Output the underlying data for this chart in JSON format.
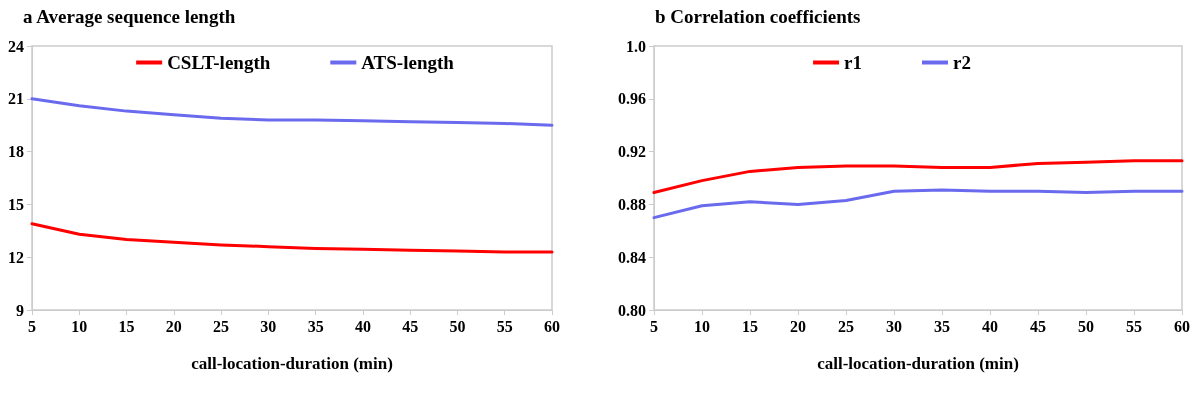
{
  "chart_data": [
    {
      "type": "line",
      "title": "a Average sequence length",
      "xlabel": "call-location-duration (min)",
      "x": [
        5,
        10,
        15,
        20,
        25,
        30,
        35,
        40,
        45,
        50,
        55,
        60
      ],
      "series": [
        {
          "name": "CSLT-length",
          "color": "#ff0000",
          "values": [
            13.9,
            13.3,
            13.0,
            12.85,
            12.7,
            12.6,
            12.5,
            12.45,
            12.4,
            12.35,
            12.3,
            12.3
          ]
        },
        {
          "name": "ATS-length",
          "color": "#6a6aee",
          "values": [
            21.0,
            20.6,
            20.3,
            20.1,
            19.9,
            19.8,
            19.8,
            19.75,
            19.7,
            19.65,
            19.6,
            19.5
          ]
        }
      ],
      "xlim": [
        5,
        60
      ],
      "xticks": [
        5,
        10,
        15,
        20,
        25,
        30,
        35,
        40,
        45,
        50,
        55,
        60
      ],
      "ylim": [
        9,
        24
      ],
      "yticks": [
        9,
        12,
        15,
        18,
        21,
        24
      ],
      "grid": false,
      "legend": "top",
      "marker": "none"
    },
    {
      "type": "line",
      "title": "b Correlation coefficients",
      "xlabel": "call-location-duration (min)",
      "x": [
        5,
        10,
        15,
        20,
        25,
        30,
        35,
        40,
        45,
        50,
        55,
        60
      ],
      "series": [
        {
          "name": "r1",
          "color": "#ff0000",
          "values": [
            0.889,
            0.898,
            0.905,
            0.908,
            0.909,
            0.909,
            0.908,
            0.908,
            0.911,
            0.912,
            0.913,
            0.913
          ]
        },
        {
          "name": "r2",
          "color": "#6a6aee",
          "values": [
            0.87,
            0.879,
            0.882,
            0.88,
            0.883,
            0.89,
            0.891,
            0.89,
            0.89,
            0.889,
            0.89,
            0.89
          ]
        }
      ],
      "xlim": [
        5,
        60
      ],
      "xticks": [
        5,
        10,
        15,
        20,
        25,
        30,
        35,
        40,
        45,
        50,
        55,
        60
      ],
      "ylim": [
        0.8,
        1.0
      ],
      "yticks": [
        {
          "value": 0.8,
          "label": "0.80"
        },
        0.84,
        0.88,
        0.92,
        0.96,
        {
          "value": 1.0,
          "label": "1.0"
        }
      ],
      "grid": false,
      "legend": "top",
      "marker": "none"
    }
  ]
}
